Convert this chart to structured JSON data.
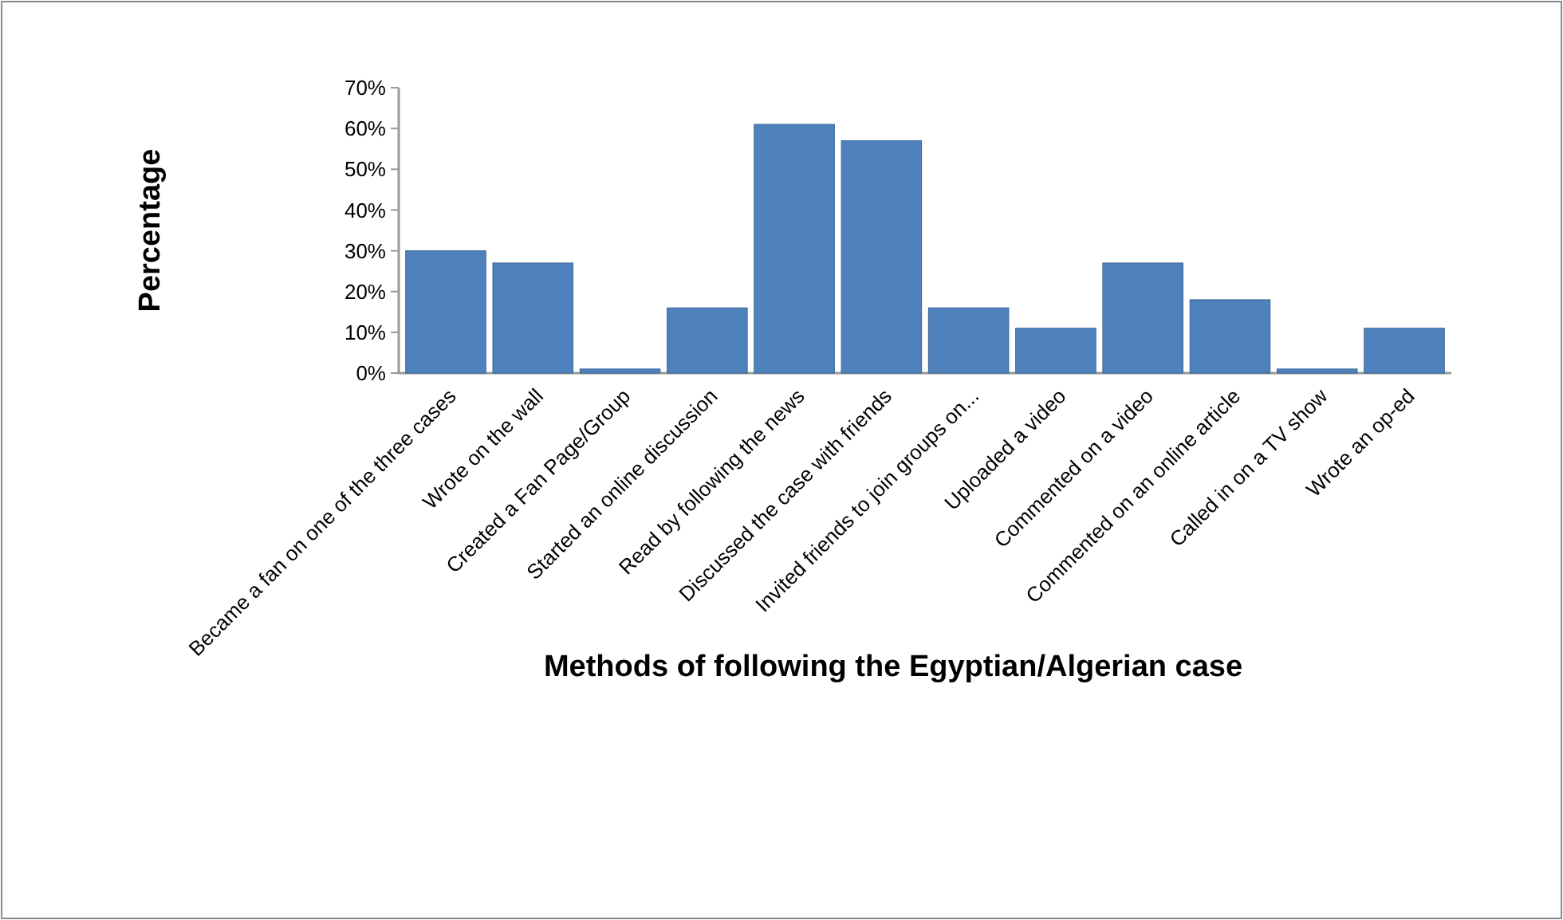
{
  "chart_data": {
    "type": "bar",
    "xlabel": "Methods of following the Egyptian/Algerian case",
    "ylabel": "Percentage",
    "categories": [
      "Became a fan on one of the three cases",
      "Wrote on the wall",
      "Created a Fan Page/Group",
      "Started an online discussion",
      "Read by following the news",
      "Discussed the case with friends",
      "Invited friends to join groups on...",
      "Uploaded a video",
      "Commented on a video",
      "Commented on an online article",
      "Called in on a TV show",
      "Wrote an op-ed"
    ],
    "values": [
      30,
      27,
      1,
      16,
      61,
      57,
      16,
      11,
      27,
      18,
      1,
      11
    ],
    "color": "#4f81bd",
    "ylim": [
      0,
      70
    ],
    "yticks": [
      {
        "value": 0,
        "label": "0%"
      },
      {
        "value": 10,
        "label": "10%"
      },
      {
        "value": 20,
        "label": "20%"
      },
      {
        "value": 30,
        "label": "30%"
      },
      {
        "value": 40,
        "label": "40%"
      },
      {
        "value": 50,
        "label": "50%"
      },
      {
        "value": 60,
        "label": "60%"
      },
      {
        "value": 70,
        "label": "70%"
      }
    ],
    "grid": false
  }
}
